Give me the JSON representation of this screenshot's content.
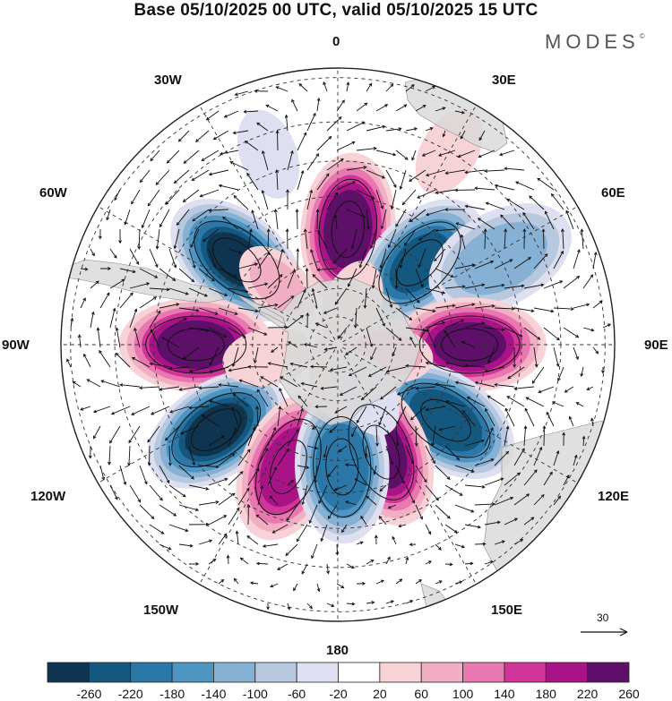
{
  "title": "Base 05/10/2025 00 UTC, valid 05/10/2025 15 UTC",
  "brand": "MODES",
  "brand_mark": "©",
  "longitude_labels": {
    "lon_0": "0",
    "lon_30e": "30E",
    "lon_60e": "60E",
    "lon_90e": "90E",
    "lon_120e": "120E",
    "lon_150e": "150E",
    "lon_180": "180",
    "lon_150w": "150W",
    "lon_120w": "120W",
    "lon_90w": "90W",
    "lon_60w": "60W",
    "lon_30w": "30W"
  },
  "reference_vector": {
    "label": "30",
    "magnitude": 30
  },
  "colorbar": {
    "levels": [
      "-260",
      "-220",
      "-180",
      "-140",
      "-100",
      "-60",
      "-20",
      "20",
      "60",
      "100",
      "140",
      "180",
      "220",
      "260"
    ],
    "colors": [
      "#0f3450",
      "#14587f",
      "#2b78a8",
      "#4f95c2",
      "#86b1d4",
      "#b7c8df",
      "#dedff0",
      "#ffffff",
      "#f7d3d7",
      "#f2aec2",
      "#ea78b0",
      "#d2359a",
      "#a81487",
      "#5e0f6a"
    ]
  },
  "map": {
    "projection": "south-polar-stereographic",
    "land_color": "#d8d8d8",
    "anomalies": [
      {
        "lon": 5,
        "lat": -50,
        "value": 240
      },
      {
        "lon": -50,
        "lat": -45,
        "value": -260
      },
      {
        "lon": 45,
        "lat": -50,
        "value": -220
      },
      {
        "lon": 62,
        "lat": -30,
        "value": -120
      },
      {
        "lon": 90,
        "lat": -45,
        "value": 220
      },
      {
        "lon": -90,
        "lat": -42,
        "value": 240
      },
      {
        "lon": 125,
        "lat": -45,
        "value": -250
      },
      {
        "lon": -125,
        "lat": -40,
        "value": -260
      },
      {
        "lon": 158,
        "lat": -50,
        "value": 230
      },
      {
        "lon": -158,
        "lat": -45,
        "value": 200
      },
      {
        "lon": 178,
        "lat": -48,
        "value": -210
      },
      {
        "lon": 180,
        "lat": -80,
        "value": 40
      },
      {
        "lon": -45,
        "lat": -60,
        "value": 60
      },
      {
        "lon": 20,
        "lat": -75,
        "value": 40
      },
      {
        "lon": 100,
        "lat": -72,
        "value": 70
      },
      {
        "lon": -100,
        "lat": -65,
        "value": 40
      },
      {
        "lon": 150,
        "lat": -70,
        "value": -50
      },
      {
        "lon": -20,
        "lat": -25,
        "value": -40
      },
      {
        "lon": 30,
        "lat": -20,
        "value": 40
      }
    ]
  }
}
